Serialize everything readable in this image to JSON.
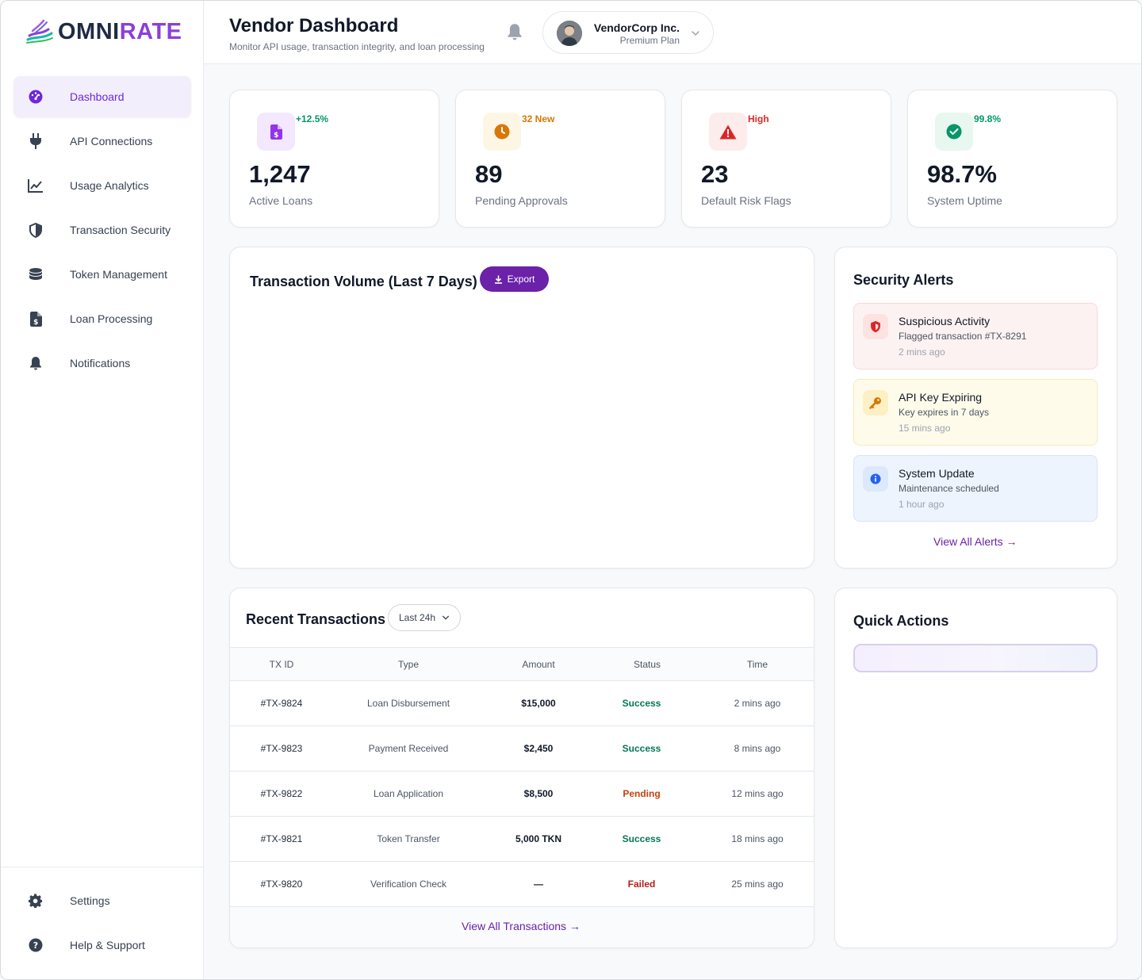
{
  "brand": {
    "name_part1": "OMNI",
    "name_part2": "RATE",
    "accent_color": "#8b3fd8"
  },
  "sidebar": {
    "items": [
      {
        "label": "Dashboard",
        "icon": "dashboard-gauge-icon",
        "active": true
      },
      {
        "label": "API Connections",
        "icon": "plug-icon"
      },
      {
        "label": "Usage Analytics",
        "icon": "line-chart-icon"
      },
      {
        "label": "Transaction Security",
        "icon": "shield-icon"
      },
      {
        "label": "Token Management",
        "icon": "coins-icon"
      },
      {
        "label": "Loan Processing",
        "icon": "dollar-file-icon"
      },
      {
        "label": "Notifications",
        "icon": "bell-icon"
      }
    ],
    "bottom_items": [
      {
        "label": "Settings",
        "icon": "gear-icon"
      },
      {
        "label": "Help & Support",
        "icon": "question-circle-icon"
      }
    ]
  },
  "header": {
    "title": "Vendor Dashboard",
    "subtitle": "Monitor API usage, transaction integrity, and loan processing",
    "account": {
      "name": "VendorCorp Inc.",
      "plan": "Premium Plan"
    }
  },
  "stats": [
    {
      "value": "1,247",
      "caption": "Active Loans",
      "delta": "+12.5%",
      "delta_color": "#059669",
      "icon": "dollar-file-icon",
      "icon_bg": "#f3e8ff",
      "icon_color": "#9333ea"
    },
    {
      "value": "89",
      "caption": "Pending Approvals",
      "delta": "32 New",
      "delta_color": "#d97706",
      "icon": "clock-icon",
      "icon_bg": "#fef6e4",
      "icon_color": "#d97706"
    },
    {
      "value": "23",
      "caption": "Default Risk Flags",
      "delta": "High",
      "delta_color": "#dc2626",
      "icon": "warning-triangle-icon",
      "icon_bg": "#fdecec",
      "icon_color": "#dc2626"
    },
    {
      "value": "98.7%",
      "caption": "System Uptime",
      "delta": "99.8%",
      "delta_color": "#059669",
      "icon": "check-circle-icon",
      "icon_bg": "#e8f7ef",
      "icon_color": "#059669"
    }
  ],
  "volume": {
    "title": "Transaction Volume (Last 7 Days)",
    "export_label": "Export"
  },
  "alerts": {
    "title": "Security Alerts",
    "items": [
      {
        "title": "Suspicious Activity",
        "desc": "Flagged transaction #TX-8291",
        "time": "2 mins ago",
        "icon": "shield-alert-icon",
        "bg": "#fdf2f2",
        "border": "#f8d9d9",
        "icon_bg": "#fde2e2",
        "icon_color": "#dc2626"
      },
      {
        "title": "API Key Expiring",
        "desc": "Key expires in 7 days",
        "time": "15 mins ago",
        "icon": "key-icon",
        "bg": "#fefbea",
        "border": "#f5ebbd",
        "icon_bg": "#fdf0c4",
        "icon_color": "#d97706"
      },
      {
        "title": "System Update",
        "desc": "Maintenance scheduled",
        "time": "1 hour ago",
        "icon": "info-icon",
        "bg": "#eef4fd",
        "border": "#d7e4f8",
        "icon_bg": "#dce8fb",
        "icon_color": "#2563eb"
      }
    ],
    "view_all": "View All Alerts →"
  },
  "transactions": {
    "title": "Recent Transactions",
    "filter": "Last 24h",
    "columns": [
      "TX ID",
      "Type",
      "Amount",
      "Status",
      "Time"
    ],
    "rows": [
      {
        "id": "#TX-9824",
        "type": "Loan Disbursement",
        "amount": "$15,000",
        "status": "Success",
        "status_color": "#047857",
        "time": "2 mins ago"
      },
      {
        "id": "#TX-9823",
        "type": "Payment Received",
        "amount": "$2,450",
        "status": "Success",
        "status_color": "#047857",
        "time": "8 mins ago"
      },
      {
        "id": "#TX-9822",
        "type": "Loan Application",
        "amount": "$8,500",
        "status": "Pending",
        "status_color": "#c2410c",
        "time": "12 mins ago"
      },
      {
        "id": "#TX-9821",
        "type": "Token Transfer",
        "amount": "5,000 TKN",
        "status": "Success",
        "status_color": "#047857",
        "time": "18 mins ago"
      },
      {
        "id": "#TX-9820",
        "type": "Verification Check",
        "amount": "—",
        "status": "Failed",
        "status_color": "#b91c1c",
        "time": "25 mins ago"
      }
    ],
    "view_all": "View All Transactions →"
  },
  "quick_actions": {
    "title": "Quick Actions"
  }
}
